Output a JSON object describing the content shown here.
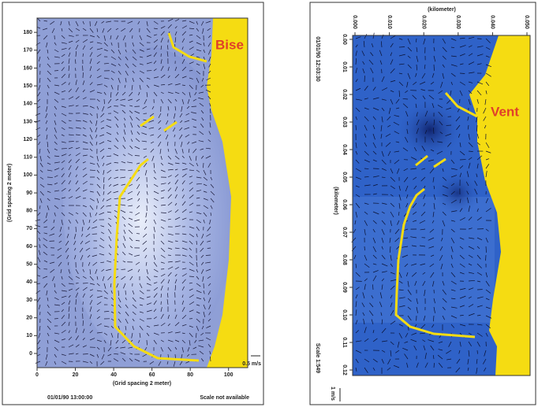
{
  "chart_data": [
    {
      "type": "quiver",
      "annotation": "Bise",
      "x_label": "(Grid spacing 2 meter)",
      "y_label": "(Grid spacing 2 meter)",
      "xlim": [
        0,
        110
      ],
      "xticks": [
        0,
        20,
        40,
        60,
        80,
        100
      ],
      "ylim": [
        0,
        188
      ],
      "yticks": [
        0,
        10,
        20,
        30,
        40,
        50,
        60,
        70,
        80,
        90,
        100,
        110,
        120,
        130,
        140,
        150,
        160,
        170,
        180
      ],
      "timestamp": "01/01/90 13:00:00",
      "scale_note": "Scale not available",
      "reference_vector": "0.5 m/s",
      "field_color": "#8f9fd6",
      "coast_color": "#f5dc12"
    },
    {
      "type": "quiver",
      "annotation": "Vent",
      "x_label": "(kilometer)",
      "y_label": "(kilometer)",
      "xlim": [
        0,
        0.05
      ],
      "xticks": [
        {
          "value": 0,
          "label": "0.000"
        },
        {
          "value": 0.01,
          "label": "0.010"
        },
        {
          "value": 0.02,
          "label": "0.020"
        },
        {
          "value": 0.03,
          "label": "0.030"
        },
        {
          "value": 0.04,
          "label": "0.040"
        },
        {
          "value": 0.05,
          "label": "0.050"
        }
      ],
      "ylim": [
        0,
        0.12
      ],
      "yaxis_inverted": true,
      "yticks": [
        {
          "value": 0,
          "label": "0.00"
        },
        {
          "value": 0.01,
          "label": "0.01"
        },
        {
          "value": 0.02,
          "label": "0.02"
        },
        {
          "value": 0.03,
          "label": "0.03"
        },
        {
          "value": 0.04,
          "label": "0.04"
        },
        {
          "value": 0.05,
          "label": "0.05"
        },
        {
          "value": 0.06,
          "label": "0.06"
        },
        {
          "value": 0.07,
          "label": "0.07"
        },
        {
          "value": 0.08,
          "label": "0.08"
        },
        {
          "value": 0.09,
          "label": "0.09"
        },
        {
          "value": 0.1,
          "label": "0.10"
        },
        {
          "value": 0.11,
          "label": "0.11"
        },
        {
          "value": 0.12,
          "label": "0.12"
        }
      ],
      "timestamp": "01/01/90 12:03:30",
      "scale_note": "Scale 1:549",
      "reference_vector": "1 m/s",
      "field_color": "#2f62c8",
      "coast_color": "#f5dc12"
    }
  ]
}
